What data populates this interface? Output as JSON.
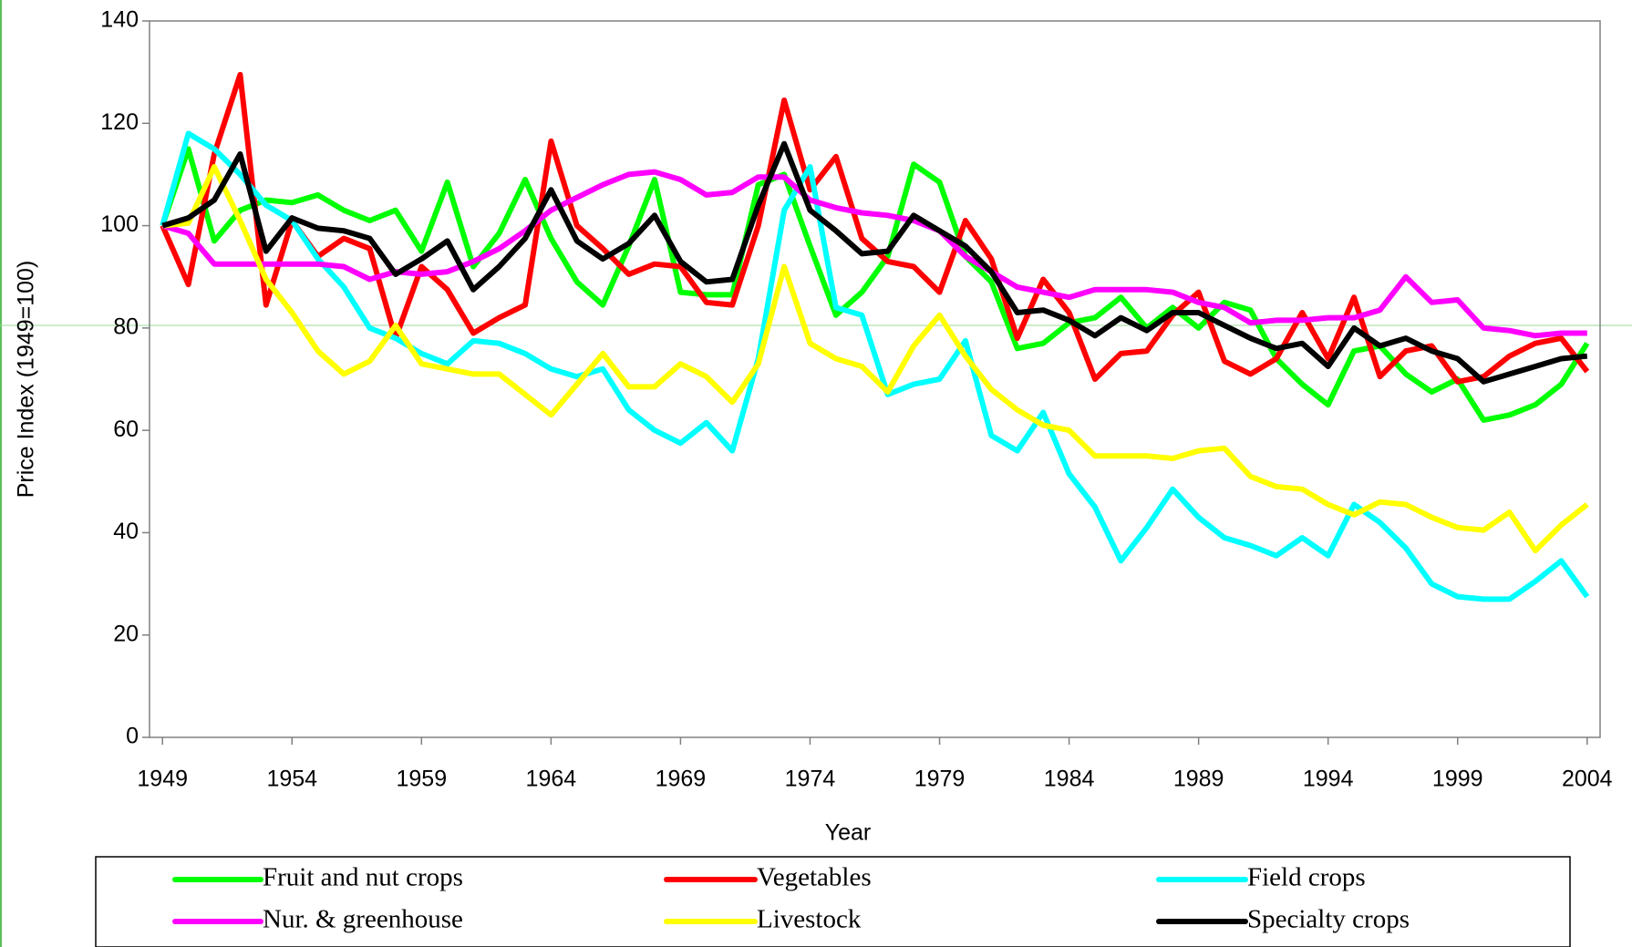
{
  "chart_data": {
    "type": "line",
    "x_label": "Year",
    "y_label": "Price Index (1949=100)",
    "x": [
      1949,
      1950,
      1951,
      1952,
      1953,
      1954,
      1955,
      1956,
      1957,
      1958,
      1959,
      1960,
      1961,
      1962,
      1963,
      1964,
      1965,
      1966,
      1967,
      1968,
      1969,
      1970,
      1971,
      1972,
      1973,
      1974,
      1975,
      1976,
      1977,
      1978,
      1979,
      1980,
      1981,
      1982,
      1983,
      1984,
      1985,
      1986,
      1987,
      1988,
      1989,
      1990,
      1991,
      1992,
      1993,
      1994,
      1995,
      1996,
      1997,
      1998,
      1999,
      2000,
      2001,
      2002,
      2003,
      2004
    ],
    "xlim": [
      1948.5,
      2004.5
    ],
    "xticks": [
      1949,
      1954,
      1959,
      1964,
      1969,
      1974,
      1979,
      1984,
      1989,
      1994,
      1999,
      2004
    ],
    "ylim": [
      0,
      140
    ],
    "yticks": [
      0,
      20,
      40,
      60,
      80,
      100,
      120,
      140
    ],
    "series": [
      {
        "name": "Fruit and nut crops",
        "color": "#00ff00",
        "values": [
          100,
          115,
          97,
          103,
          105,
          104.5,
          106,
          103,
          101,
          103,
          95,
          108.5,
          92,
          98.5,
          109,
          97.5,
          89,
          84.5,
          96,
          109,
          87,
          86.5,
          86.5,
          108,
          110,
          96,
          82.5,
          87,
          94,
          112,
          108.5,
          94,
          89,
          76,
          77,
          81,
          82,
          86,
          80,
          84,
          80,
          85,
          83.5,
          74,
          69,
          65,
          75.5,
          76.5,
          71,
          67.5,
          70,
          62,
          63,
          65,
          69,
          77
        ]
      },
      {
        "name": "Vegetables",
        "color": "#ff0000",
        "values": [
          100,
          88.5,
          114,
          129.5,
          84.5,
          101,
          94,
          97.5,
          95.5,
          78,
          92,
          87.5,
          79,
          82,
          84.5,
          116.5,
          100,
          95.5,
          90.5,
          92.5,
          92,
          85,
          84.5,
          100,
          124.5,
          107,
          113.5,
          97.5,
          93,
          92,
          87,
          101,
          93.5,
          78,
          89.5,
          83,
          70,
          75,
          75.5,
          82.5,
          87,
          73.5,
          71,
          74,
          83,
          74,
          86,
          70.5,
          75.5,
          76.5,
          69.5,
          70.5,
          74.5,
          77,
          78,
          71.5
        ]
      },
      {
        "name": "Field crops",
        "color": "#00ffff",
        "values": [
          100,
          118,
          115,
          110,
          104,
          101,
          93.5,
          88,
          80,
          78,
          75,
          73,
          77.5,
          77,
          75,
          72,
          70.5,
          72,
          64,
          60,
          57.5,
          61.5,
          56,
          74,
          103,
          111.5,
          84,
          82.5,
          67,
          69,
          70,
          77.5,
          59,
          56,
          63.5,
          51.5,
          45,
          34.5,
          41,
          48.5,
          43,
          39,
          37.5,
          35.5,
          39,
          35.5,
          45.5,
          42,
          37,
          30,
          27.5,
          27,
          27,
          30.5,
          34.5,
          27.5
        ]
      },
      {
        "name": "Nur. & greenhouse",
        "color": "#ff00ff",
        "values": [
          100,
          98.5,
          92.5,
          92.5,
          92.5,
          92.5,
          92.5,
          92,
          89.5,
          91,
          90.5,
          91,
          93,
          95.5,
          99,
          103,
          105.5,
          108,
          110,
          110.5,
          109,
          106,
          106.5,
          109.5,
          109.5,
          105,
          103.5,
          102.5,
          102,
          101,
          99,
          94,
          91,
          88,
          87,
          86,
          87.5,
          87.5,
          87.5,
          87,
          85,
          84,
          81,
          81.5,
          81.5,
          82,
          82,
          83.5,
          90,
          85,
          85.5,
          80,
          79.5,
          78.5,
          79,
          79
        ]
      },
      {
        "name": "Livestock",
        "color": "#ffff00",
        "values": [
          100,
          100.5,
          111.5,
          101,
          89.5,
          83,
          75.5,
          71,
          73.5,
          80.5,
          73,
          72,
          71,
          71,
          67,
          63,
          69,
          75,
          68.5,
          68.5,
          73,
          70.5,
          65.5,
          73,
          92,
          77,
          74,
          72.5,
          67.5,
          76.5,
          82.5,
          74.5,
          68,
          64,
          61,
          60,
          55,
          55,
          55,
          54.5,
          56,
          56.5,
          51,
          49,
          48.5,
          45.5,
          43.5,
          46,
          45.5,
          43,
          41,
          40.5,
          44,
          36.5,
          41.5,
          45.5
        ]
      },
      {
        "name": "Specialty crops",
        "color": "#000000",
        "values": [
          100,
          101.5,
          105,
          114,
          95,
          101.5,
          99.5,
          99,
          97.5,
          90.5,
          93.5,
          97,
          87.5,
          92,
          97.5,
          107,
          97,
          93.5,
          96.5,
          102,
          93,
          89,
          89.5,
          104,
          116,
          103,
          99,
          94.5,
          95,
          102,
          99,
          96,
          91,
          83,
          83.5,
          81.5,
          78.5,
          82,
          79.5,
          83,
          83,
          80.5,
          78,
          76,
          77,
          72.5,
          80,
          76.5,
          78,
          75.5,
          74,
          69.5,
          71,
          72.5,
          74,
          74.5
        ]
      }
    ]
  }
}
